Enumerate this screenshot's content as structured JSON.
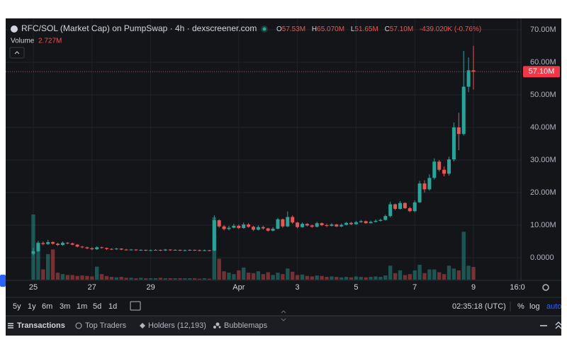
{
  "header": {
    "title": "RFC/SOL (Market Cap) on PumpSwap · 4h · dexscreener.com",
    "ohlc": [
      {
        "key": "O",
        "value": "57.53M"
      },
      {
        "key": "H",
        "value": "65.070M"
      },
      {
        "key": "L",
        "value": "51.65M"
      },
      {
        "key": "C",
        "value": "57.10M"
      }
    ],
    "change": "-439.020K (-0.76%)",
    "volume_label": "Volume",
    "volume_value": "2.727M"
  },
  "chart_data": {
    "type": "candlestick",
    "categories": [
      "25",
      null,
      null,
      null,
      null,
      null,
      null,
      null,
      null,
      null,
      null,
      null,
      "27",
      null,
      null,
      null,
      null,
      null,
      null,
      null,
      null,
      null,
      null,
      null,
      "29",
      null,
      null,
      null,
      null,
      null,
      null,
      null,
      null,
      null,
      null,
      null,
      null,
      null,
      null,
      null,
      null,
      null,
      "Apr",
      null,
      null,
      null,
      null,
      null,
      null,
      null,
      null,
      null,
      null,
      null,
      "3",
      null,
      null,
      null,
      null,
      null,
      null,
      null,
      null,
      null,
      null,
      null,
      "5",
      null,
      null,
      null,
      null,
      null,
      null,
      null,
      null,
      null,
      null,
      null,
      "7",
      null,
      null,
      null,
      null,
      null,
      null,
      null,
      null,
      null,
      null,
      null,
      "9",
      null,
      null,
      null,
      null,
      null,
      null,
      null,
      null,
      "16:0"
    ],
    "open": [
      1.2,
      2.0,
      4.5,
      4.2,
      4.8,
      4.3,
      3.9,
      4.6,
      4.4,
      4.0,
      3.4,
      3.2,
      2.9,
      2.6,
      3.2,
      3.0,
      2.7,
      2.6,
      2.8,
      2.5,
      2.4,
      2.5,
      2.3,
      2.4,
      2.2,
      2.3,
      2.4,
      2.2,
      2.5,
      2.3,
      2.4,
      2.2,
      2.3,
      2.4,
      2.3,
      2.2,
      2.3,
      2.2,
      11.5,
      9.6,
      8.8,
      9.2,
      9.8,
      9.1,
      10.2,
      9.5,
      8.6,
      9.4,
      9.0,
      8.3,
      8.9,
      11.8,
      9.6,
      12.5,
      10.8,
      9.4,
      10.4,
      9.9,
      9.5,
      10.6,
      10.0,
      9.8,
      10.2,
      9.6,
      10.1,
      10.7,
      10.3,
      10.9,
      11.2,
      10.6,
      11.0,
      11.3,
      11.6,
      12.8,
      16.4,
      15.0,
      16.8,
      15.2,
      14.3,
      17.0,
      22.8,
      21.0,
      24.5,
      29.5,
      27.0,
      25.8,
      30.2,
      40.0,
      38.0,
      52.5,
      57.53,
      null,
      null,
      null,
      null,
      null,
      null,
      null,
      null,
      null
    ],
    "high": [
      3.0,
      5.2,
      5.0,
      5.5,
      5.0,
      4.6,
      5.0,
      4.8,
      4.6,
      4.2,
      3.6,
      3.4,
      3.2,
      3.5,
      3.4,
      3.1,
      2.9,
      3.0,
      2.9,
      2.7,
      2.7,
      2.6,
      2.6,
      2.5,
      2.5,
      2.6,
      2.5,
      2.7,
      2.6,
      2.6,
      2.5,
      2.5,
      2.6,
      2.5,
      2.5,
      2.5,
      2.4,
      13.0,
      11.8,
      10.0,
      9.8,
      10.4,
      10.2,
      10.8,
      10.6,
      9.8,
      9.9,
      9.8,
      9.2,
      9.4,
      12.2,
      12.0,
      14.2,
      13.0,
      11.0,
      10.8,
      10.6,
      10.2,
      11.0,
      10.8,
      10.4,
      10.6,
      10.4,
      10.5,
      11.0,
      11.0,
      11.3,
      11.6,
      11.4,
      11.4,
      11.7,
      12.0,
      13.2,
      17.2,
      16.6,
      17.4,
      17.0,
      15.6,
      17.6,
      23.6,
      23.8,
      25.6,
      30.5,
      30.0,
      28.0,
      31.0,
      41.5,
      44.5,
      63.5,
      61.5,
      65.07,
      null,
      null,
      null,
      null,
      null,
      null,
      null,
      null,
      null
    ],
    "low": [
      0.8,
      1.8,
      3.8,
      3.9,
      4.0,
      3.6,
      3.7,
      4.1,
      3.8,
      3.2,
      2.9,
      2.6,
      2.3,
      2.4,
      2.8,
      2.4,
      2.4,
      2.4,
      2.3,
      2.2,
      2.2,
      2.1,
      2.1,
      2.0,
      2.1,
      2.2,
      2.0,
      2.1,
      2.1,
      2.2,
      2.0,
      2.0,
      2.1,
      2.1,
      2.0,
      2.0,
      2.0,
      2.0,
      9.2,
      8.4,
      8.4,
      9.0,
      8.8,
      8.9,
      9.2,
      8.2,
      8.4,
      8.6,
      8.0,
      8.1,
      8.7,
      9.2,
      9.4,
      10.4,
      9.0,
      9.2,
      9.6,
      9.2,
      9.3,
      9.7,
      9.4,
      9.6,
      9.4,
      9.4,
      9.9,
      10.0,
      10.1,
      10.7,
      10.4,
      10.5,
      10.8,
      11.1,
      11.4,
      12.4,
      14.6,
      14.8,
      15.0,
      14.0,
      14.0,
      16.8,
      20.0,
      20.6,
      24.0,
      26.5,
      25.0,
      25.2,
      29.6,
      33.0,
      37.5,
      50.8,
      51.65,
      null,
      null,
      null,
      null,
      null,
      null,
      null,
      null,
      null
    ],
    "close": [
      2.0,
      4.5,
      4.2,
      4.8,
      4.3,
      3.9,
      4.6,
      4.4,
      4.0,
      3.4,
      3.2,
      2.9,
      2.6,
      3.2,
      3.0,
      2.7,
      2.6,
      2.8,
      2.5,
      2.4,
      2.5,
      2.3,
      2.4,
      2.2,
      2.3,
      2.4,
      2.2,
      2.5,
      2.3,
      2.4,
      2.2,
      2.3,
      2.4,
      2.3,
      2.2,
      2.3,
      2.2,
      11.5,
      9.6,
      8.8,
      9.2,
      9.8,
      9.1,
      10.2,
      9.5,
      8.6,
      9.4,
      9.0,
      8.3,
      8.9,
      11.8,
      9.6,
      12.5,
      10.8,
      9.4,
      10.4,
      9.9,
      9.5,
      10.6,
      10.0,
      9.8,
      10.2,
      9.6,
      10.1,
      10.7,
      10.3,
      10.9,
      11.2,
      10.6,
      11.0,
      11.3,
      11.6,
      12.8,
      16.4,
      15.0,
      16.8,
      15.2,
      14.3,
      17.0,
      22.8,
      21.0,
      24.5,
      29.5,
      27.0,
      25.8,
      30.2,
      40.0,
      38.0,
      52.5,
      57.53,
      57.1,
      null,
      null,
      null,
      null,
      null,
      null,
      null,
      null,
      null
    ],
    "volume": [
      14.0,
      8.0,
      2.2,
      5.5,
      6.5,
      1.5,
      1.2,
      1.0,
      1.0,
      0.8,
      0.9,
      0.8,
      0.7,
      2.8,
      1.2,
      0.8,
      0.6,
      0.5,
      0.6,
      0.4,
      0.4,
      0.3,
      0.4,
      0.3,
      0.3,
      0.3,
      0.4,
      0.3,
      0.3,
      0.3,
      0.3,
      0.3,
      0.3,
      0.3,
      0.2,
      0.3,
      0.2,
      13.4,
      4.5,
      1.8,
      1.5,
      1.2,
      2.0,
      2.6,
      1.5,
      1.4,
      1.8,
      1.2,
      1.6,
      1.0,
      1.5,
      1.2,
      2.4,
      1.7,
      1.0,
      1.1,
      0.8,
      0.7,
      0.9,
      0.8,
      0.6,
      0.7,
      0.6,
      0.5,
      0.6,
      0.5,
      0.7,
      0.6,
      0.5,
      0.6,
      0.7,
      0.6,
      0.9,
      3.0,
      1.4,
      2.0,
      1.0,
      1.2,
      2.0,
      3.2,
      1.4,
      2.2,
      2.2,
      1.6,
      1.2,
      3.0,
      2.4,
      2.0,
      10.3,
      3.0,
      2.727,
      null,
      null,
      null,
      null,
      null,
      null,
      null,
      null,
      null
    ],
    "up_color": "#26a69a",
    "down_color": "#ef5350",
    "ylim": [
      -6.74,
      72.6
    ],
    "yticks": [
      {
        "value": 0,
        "label": "0.0000"
      },
      {
        "value": 10,
        "label": "10.00M"
      },
      {
        "value": 20,
        "label": "20.00M"
      },
      {
        "value": 30,
        "label": "30.00M"
      },
      {
        "value": 40,
        "label": "40.00M"
      },
      {
        "value": 50,
        "label": "50.00M"
      },
      {
        "value": 60,
        "label": "60.00M"
      },
      {
        "value": 70,
        "label": "70.00M"
      }
    ],
    "current_price": {
      "value": 57.1,
      "label": "57.10M"
    },
    "grid": true
  },
  "toolbar": {
    "ranges": [
      "5y",
      "1y",
      "6m",
      "3m",
      "1m",
      "5d",
      "1d"
    ],
    "time": "02:35:18 (UTC)",
    "percent": "%",
    "log": "log",
    "auto": "auto"
  },
  "tabs": [
    "Transactions",
    "Top Traders",
    "Holders (12,193)",
    "Bubblemaps"
  ]
}
